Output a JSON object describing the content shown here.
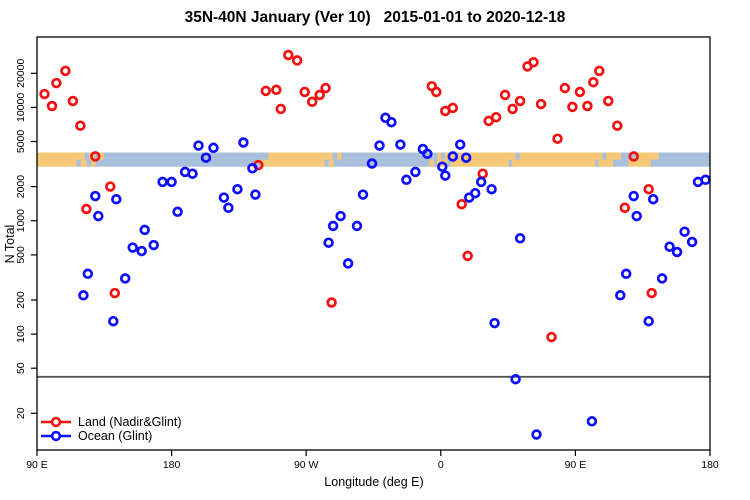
{
  "title": "35N-40N January (Ver 10)   2015-01-01 to 2020-12-18",
  "chart_data": {
    "type": "scatter",
    "title": "35N-40N January (Ver 10)   2015-01-01 to 2020-12-18",
    "xlabel": "Longitude (deg E)",
    "ylabel": "N Total",
    "x_axis": {
      "range_deg": [
        90,
        540
      ],
      "ticks_deg": [
        90,
        180,
        270,
        360,
        450,
        540
      ],
      "tick_labels": [
        "90 E",
        "180",
        "90 W",
        "0",
        "90 E",
        "180"
      ],
      "note": "longitude axis wraps eastward: 90E to 180 to 90W to 0 to 90E to 180"
    },
    "y_axis": {
      "scale": "log10",
      "ticks": [
        20,
        50,
        100,
        200,
        500,
        1000,
        2000,
        5000,
        10000,
        20000
      ],
      "range": [
        10,
        42000
      ]
    },
    "reference_line": {
      "y": 42,
      "color": "#555555"
    },
    "land_ocean_band": {
      "y_range": [
        3000,
        4000
      ],
      "colors": {
        "land": "#F6C878",
        "ocean": "#A9BFDB"
      },
      "segments": [
        {
          "from": 90,
          "to": 119,
          "surface": "land"
        },
        {
          "from": 119,
          "to": 122,
          "surface": "ocean"
        },
        {
          "from": 122,
          "to": 126,
          "surface": "land"
        },
        {
          "from": 126,
          "to": 129,
          "surface": "ocean"
        },
        {
          "from": 129,
          "to": 132,
          "surface": "land"
        },
        {
          "from": 132,
          "to": 242,
          "surface": "ocean"
        },
        {
          "from": 242,
          "to": 285,
          "surface": "land"
        },
        {
          "from": 285,
          "to": 288,
          "surface": "ocean"
        },
        {
          "from": 288,
          "to": 291,
          "surface": "land"
        },
        {
          "from": 291,
          "to": 355,
          "surface": "ocean"
        },
        {
          "from": 355,
          "to": 358,
          "surface": "land"
        },
        {
          "from": 358,
          "to": 360,
          "surface": "ocean"
        },
        {
          "from": 360,
          "to": 367,
          "surface": "land"
        },
        {
          "from": 367,
          "to": 369,
          "surface": "ocean"
        },
        {
          "from": 369,
          "to": 408,
          "surface": "land"
        },
        {
          "from": 408,
          "to": 410,
          "surface": "ocean"
        },
        {
          "from": 410,
          "to": 466,
          "surface": "land"
        },
        {
          "from": 466,
          "to": 468,
          "surface": "ocean"
        },
        {
          "from": 468,
          "to": 478,
          "surface": "land"
        },
        {
          "from": 478,
          "to": 488,
          "surface": "ocean"
        },
        {
          "from": 488,
          "to": 503,
          "surface": "land"
        },
        {
          "from": 503,
          "to": 540,
          "surface": "ocean"
        }
      ]
    },
    "series": [
      {
        "name": "Land (Nadir&Glint)",
        "color": "#F50F0F",
        "marker": "open-circle",
        "points": [
          [
            109,
            21000
          ],
          [
            103,
            16400
          ],
          [
            95,
            13100
          ],
          [
            100,
            10300
          ],
          [
            114,
            11400
          ],
          [
            119,
            6900
          ],
          [
            129,
            3700
          ],
          [
            139,
            2000
          ],
          [
            123,
            1270
          ],
          [
            142,
            230
          ],
          [
            238,
            3100
          ],
          [
            243,
            14000
          ],
          [
            250,
            14300
          ],
          [
            253,
            9700
          ],
          [
            258,
            29000
          ],
          [
            264,
            26000
          ],
          [
            269,
            13700
          ],
          [
            274,
            11200
          ],
          [
            279,
            12900
          ],
          [
            283,
            14800
          ],
          [
            287,
            190
          ],
          [
            354,
            15400
          ],
          [
            357,
            13700
          ],
          [
            363,
            9300
          ],
          [
            368,
            9900
          ],
          [
            374,
            1400
          ],
          [
            378,
            490
          ],
          [
            388,
            2600
          ],
          [
            392,
            7600
          ],
          [
            397,
            8200
          ],
          [
            403,
            12900
          ],
          [
            408,
            9700
          ],
          [
            413,
            11400
          ],
          [
            418,
            23000
          ],
          [
            422,
            25000
          ],
          [
            427,
            10700
          ],
          [
            434,
            94
          ],
          [
            438,
            5300
          ],
          [
            443,
            14800
          ],
          [
            448,
            10100
          ],
          [
            453,
            13700
          ],
          [
            458,
            10300
          ],
          [
            462,
            16700
          ],
          [
            466,
            21000
          ],
          [
            472,
            11400
          ],
          [
            478,
            6900
          ],
          [
            483,
            1300
          ],
          [
            489,
            3700
          ],
          [
            499,
            1900
          ],
          [
            501,
            230
          ]
        ]
      },
      {
        "name": "Ocean (Glint)",
        "color": "#0D0DFF",
        "marker": "open-circle",
        "points": [
          [
            129,
            1650
          ],
          [
            143,
            1550
          ],
          [
            131,
            1100
          ],
          [
            124,
            340
          ],
          [
            121,
            220
          ],
          [
            149,
            310
          ],
          [
            141,
            130
          ],
          [
            162,
            830
          ],
          [
            168,
            610
          ],
          [
            154,
            580
          ],
          [
            160,
            540
          ],
          [
            174,
            2200
          ],
          [
            180,
            2200
          ],
          [
            184,
            1200
          ],
          [
            189,
            2700
          ],
          [
            194,
            2600
          ],
          [
            198,
            4600
          ],
          [
            203,
            3600
          ],
          [
            208,
            4400
          ],
          [
            215,
            1600
          ],
          [
            218,
            1300
          ],
          [
            224,
            1900
          ],
          [
            228,
            4900
          ],
          [
            234,
            2900
          ],
          [
            236,
            1700
          ],
          [
            285,
            640
          ],
          [
            288,
            900
          ],
          [
            293,
            1100
          ],
          [
            298,
            420
          ],
          [
            304,
            900
          ],
          [
            308,
            1700
          ],
          [
            314,
            3200
          ],
          [
            319,
            4600
          ],
          [
            323,
            8100
          ],
          [
            327,
            7400
          ],
          [
            333,
            4700
          ],
          [
            337,
            2300
          ],
          [
            343,
            2700
          ],
          [
            348,
            4300
          ],
          [
            351,
            3900
          ],
          [
            361,
            3000
          ],
          [
            363,
            2500
          ],
          [
            368,
            3700
          ],
          [
            373,
            4700
          ],
          [
            377,
            3600
          ],
          [
            379,
            1600
          ],
          [
            383,
            1750
          ],
          [
            387,
            2200
          ],
          [
            394,
            1900
          ],
          [
            396,
            125
          ],
          [
            410,
            40
          ],
          [
            413,
            700
          ],
          [
            424,
            13
          ],
          [
            461,
            17
          ],
          [
            480,
            220
          ],
          [
            484,
            340
          ],
          [
            489,
            1650
          ],
          [
            491,
            1100
          ],
          [
            499,
            130
          ],
          [
            502,
            1550
          ],
          [
            508,
            310
          ],
          [
            513,
            590
          ],
          [
            518,
            530
          ],
          [
            523,
            800
          ],
          [
            528,
            650
          ],
          [
            532,
            2200
          ],
          [
            537,
            2300
          ]
        ]
      }
    ],
    "legend": {
      "position": "bottom-left",
      "entries": [
        "Land (Nadir&Glint)",
        "Ocean (Glint)"
      ]
    }
  }
}
